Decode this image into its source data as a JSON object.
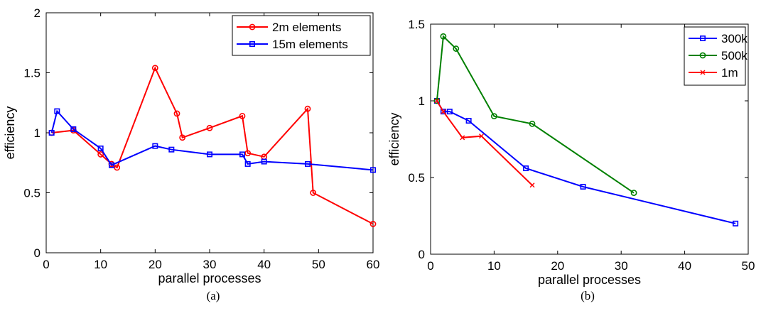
{
  "chart_data": [
    {
      "type": "line",
      "caption": "(a)",
      "xlabel": "parallel processes",
      "ylabel": "efficiency",
      "xlim": [
        0,
        60
      ],
      "ylim": [
        0,
        2
      ],
      "xticks": [
        "0",
        "10",
        "20",
        "30",
        "40",
        "50",
        "60"
      ],
      "yticks": [
        "0",
        "0.5",
        "1",
        "1.5",
        "2"
      ],
      "grid": false,
      "legend_position": "top-right",
      "series": [
        {
          "name": "2m elements",
          "color": "#ff0000",
          "marker": "circle",
          "x": [
            1,
            5,
            10,
            12,
            13,
            20,
            24,
            25,
            30,
            36,
            37,
            40,
            48,
            49,
            60
          ],
          "y": [
            1.0,
            1.02,
            0.82,
            0.74,
            0.71,
            1.54,
            1.16,
            0.96,
            1.04,
            1.14,
            0.83,
            0.8,
            1.2,
            0.5,
            0.24
          ]
        },
        {
          "name": "15m elements",
          "color": "#0000ff",
          "marker": "square",
          "x": [
            1,
            2,
            5,
            10,
            12,
            20,
            23,
            30,
            36,
            37,
            40,
            48,
            60
          ],
          "y": [
            1.0,
            1.18,
            1.03,
            0.87,
            0.73,
            0.89,
            0.86,
            0.82,
            0.82,
            0.74,
            0.76,
            0.74,
            0.69
          ]
        }
      ]
    },
    {
      "type": "line",
      "caption": "(b)",
      "xlabel": "parallel processes",
      "ylabel": "efficiency",
      "xlim": [
        0,
        50
      ],
      "ylim": [
        0,
        1.5
      ],
      "xticks": [
        "0",
        "10",
        "20",
        "30",
        "40",
        "50"
      ],
      "yticks": [
        "0",
        "0.5",
        "1",
        "1.5"
      ],
      "grid": false,
      "legend_position": "top-right",
      "series": [
        {
          "name": "300k",
          "color": "#0000ff",
          "marker": "square",
          "x": [
            1,
            2,
            3,
            6,
            15,
            24,
            48
          ],
          "y": [
            1.0,
            0.93,
            0.93,
            0.87,
            0.56,
            0.44,
            0.2
          ]
        },
        {
          "name": "500k",
          "color": "#008000",
          "marker": "circle",
          "x": [
            1,
            2,
            4,
            10,
            16,
            32
          ],
          "y": [
            1.0,
            1.42,
            1.34,
            0.9,
            0.85,
            0.4
          ]
        },
        {
          "name": "1m",
          "color": "#ff0000",
          "marker": "x",
          "x": [
            1,
            2,
            5,
            8,
            16
          ],
          "y": [
            1.0,
            0.93,
            0.76,
            0.77,
            0.45
          ]
        }
      ]
    }
  ]
}
